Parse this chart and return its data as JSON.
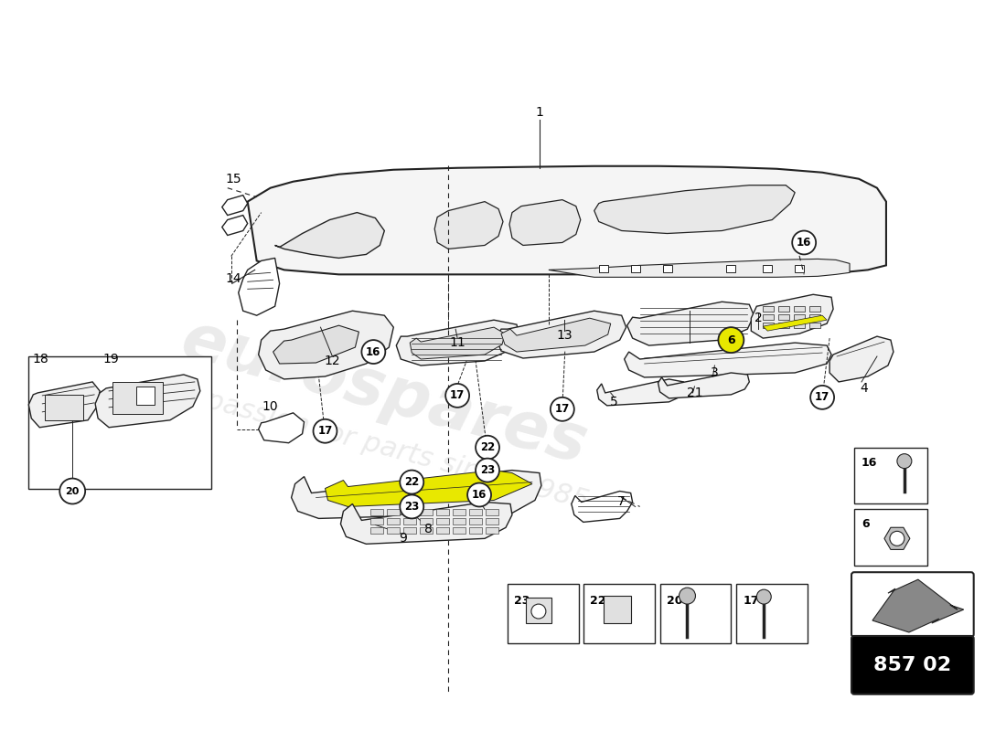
{
  "bg_color": "#ffffff",
  "line_color": "#222222",
  "watermark_color": "#d8d8d8",
  "label_circle_yellow": "#e8e800",
  "label_circle_white": "#ffffff",
  "part_number": "857 02",
  "fig_width": 11.0,
  "fig_height": 8.0
}
